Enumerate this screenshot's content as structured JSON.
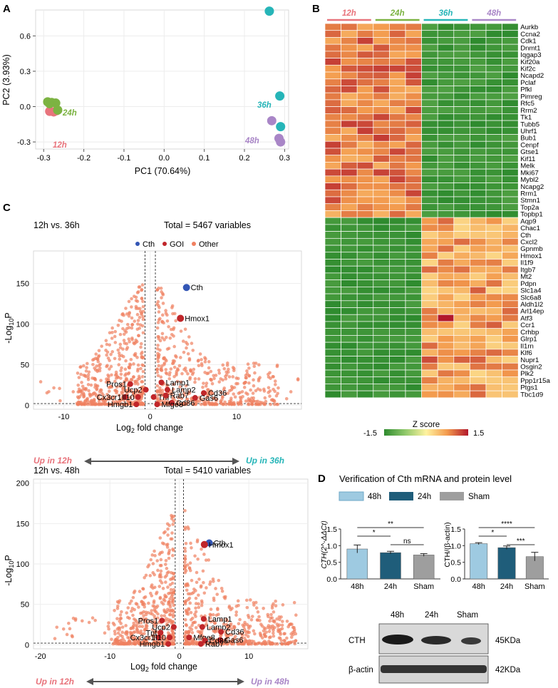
{
  "colors": {
    "t12": "#e8747c",
    "t24": "#7cb342",
    "t36": "#26b5b8",
    "t48": "#a986c7",
    "hm_low": "#2e8b2e",
    "hm_mid": "#fff3a0",
    "hm_high": "#b2182b",
    "volcano_other": "#f08060",
    "volcano_goi": "#c0262a",
    "volcano_cth": "#3356b5",
    "bar48": "#9ecae1",
    "bar24": "#1f5d7a",
    "barSham": "#9e9e9e"
  },
  "panelA": {
    "label": "A",
    "chart_data": {
      "type": "scatter",
      "title": "",
      "xlabel": "PC1 (70.64%)",
      "ylabel": "PC2 (3.93%)",
      "xlim": [
        -0.32,
        0.31
      ],
      "ylim": [
        -0.36,
        0.82
      ],
      "xticks": [
        -0.3,
        -0.2,
        -0.1,
        0.0,
        0.1,
        0.2,
        0.3
      ],
      "yticks": [
        -0.3,
        0.0,
        0.3,
        0.6
      ],
      "groups": [
        {
          "name": "12h",
          "points": [
            [
              -0.285,
              -0.04
            ],
            [
              -0.275,
              -0.045
            ],
            [
              -0.268,
              -0.035
            ]
          ]
        },
        {
          "name": "24h",
          "points": [
            [
              -0.29,
              0.04
            ],
            [
              -0.28,
              0.035
            ],
            [
              -0.27,
              0.03
            ],
            [
              -0.285,
              0.025
            ],
            [
              -0.265,
              -0.03
            ]
          ]
        },
        {
          "name": "36h",
          "points": [
            [
              0.262,
              0.81
            ],
            [
              0.288,
              0.09
            ],
            [
              0.29,
              -0.17
            ]
          ]
        },
        {
          "name": "48h",
          "points": [
            [
              0.268,
              -0.12
            ],
            [
              0.286,
              -0.27
            ],
            [
              0.29,
              -0.3
            ]
          ]
        }
      ]
    }
  },
  "panelB": {
    "label": "B",
    "groups": [
      "12h",
      "24h",
      "36h",
      "48h"
    ],
    "genes": [
      "Aurkb",
      "Ccna2",
      "Cdk1",
      "Dnmt1",
      "Iqgap3",
      "Kif20a",
      "Kif2c",
      "Ncapd2",
      "Pclaf",
      "Pfkl",
      "Pimreg",
      "Rfc5",
      "Rrm2",
      "Tk1",
      "Tubb5",
      "Uhrf1",
      "Bub1",
      "Cenpf",
      "Gtse1",
      "Kif11",
      "Melk",
      "Mki67",
      "Mybl2",
      "Ncapg2",
      "Rrm1",
      "Stmn1",
      "Top2a",
      "Topbp1",
      "Aqp9",
      "Chac1",
      "Cth",
      "Cxcl2",
      "Gpnmb",
      "Hmox1",
      "Il1f9",
      "Itgb7",
      "Mt2",
      "Pdpn",
      "Slc1a4",
      "Slc6a8",
      "Aldh1l2",
      "Arl14ep",
      "Atf3",
      "Ccr1",
      "Crhbp",
      "Glrp1",
      "Il1rn",
      "Klf6",
      "Nupr1",
      "Osgin2",
      "Plk2",
      "Ppp1r15a",
      "Ptgs1",
      "Tbc1d9"
    ],
    "colorbar_title": "Z score",
    "colorbar_min": "-1.5",
    "colorbar_max": "1.5",
    "chart_data": {
      "type": "heatmap",
      "columns_per_group": 3,
      "zlim": [
        -1.5,
        1.5
      ]
    }
  },
  "panelC": {
    "label": "C",
    "legend": [
      "Cth",
      "GOI",
      "Other"
    ],
    "top": {
      "title": "12h vs. 36h",
      "total": "Total = 5467 variables",
      "xlabel": "Log",
      "xlabel_sub": "2",
      "xlabel_rest": " fold change",
      "ylabel": "-Log",
      "ylabel_sub": "10",
      "ylabel_rest": "P",
      "up_left": "Up in 12h",
      "up_right": "Up in 36h",
      "chart_data": {
        "type": "scatter",
        "xlim": [
          -13.5,
          17.5
        ],
        "ylim": [
          -5,
          190
        ],
        "xticks": [
          -10,
          0,
          10
        ],
        "yticks": [
          0,
          50,
          100,
          150
        ],
        "labels": [
          {
            "name": "Cth",
            "x": 4.2,
            "y": 145,
            "kind": "cth"
          },
          {
            "name": "Hmox1",
            "x": 3.5,
            "y": 107,
            "kind": "goi"
          },
          {
            "name": "Pros1",
            "x": -2.3,
            "y": 26,
            "kind": "goi"
          },
          {
            "name": "Lamp1",
            "x": 1.3,
            "y": 28,
            "kind": "goi"
          },
          {
            "name": "Ucp2",
            "x": -0.5,
            "y": 19,
            "kind": "goi"
          },
          {
            "name": "Lamp2",
            "x": 2.0,
            "y": 19,
            "kind": "goi"
          },
          {
            "name": "Cx3cr1",
            "x": -2.9,
            "y": 10,
            "kind": "goi"
          },
          {
            "name": "Il10",
            "x": -1.4,
            "y": 10,
            "kind": "goi"
          },
          {
            "name": "Tnf",
            "x": 0.4,
            "y": 10,
            "kind": "goi"
          },
          {
            "name": "Cd36",
            "x": 6.2,
            "y": 15,
            "kind": "goi"
          },
          {
            "name": "Gas6",
            "x": 5.2,
            "y": 9,
            "kind": "goi"
          },
          {
            "name": "Rab7",
            "x": 1.8,
            "y": 12,
            "kind": "goi"
          },
          {
            "name": "Cd86",
            "x": 2.5,
            "y": 3,
            "kind": "goi"
          },
          {
            "name": "Hmgb1",
            "x": -1.6,
            "y": 1,
            "kind": "goi"
          },
          {
            "name": "Mfge8",
            "x": 0.8,
            "y": 1,
            "kind": "goi"
          }
        ]
      }
    },
    "bottom": {
      "title": "12h vs. 48h",
      "total": "Total = 5410 variables",
      "xlabel": "Log",
      "xlabel_sub": "2",
      "xlabel_rest": " fold change",
      "ylabel": "-Log",
      "ylabel_sub": "10",
      "ylabel_rest": "P",
      "up_left": "Up in 12h",
      "up_right": "Up in 48h",
      "chart_data": {
        "type": "scatter",
        "xlim": [
          -21,
          18.5
        ],
        "ylim": [
          -5,
          205
        ],
        "xticks": [
          -20,
          -10,
          0,
          10
        ],
        "yticks": [
          0,
          50,
          100,
          150,
          200
        ],
        "labels": [
          {
            "name": "Cth",
            "x": 4.3,
            "y": 126,
            "kind": "cth"
          },
          {
            "name": "Hmox1",
            "x": 3.6,
            "y": 124,
            "kind": "goi"
          },
          {
            "name": "Pros1",
            "x": -2.5,
            "y": 30,
            "kind": "goi"
          },
          {
            "name": "Lamp1",
            "x": 3.5,
            "y": 32,
            "kind": "goi"
          },
          {
            "name": "Ucp2",
            "x": -0.8,
            "y": 22,
            "kind": "goi"
          },
          {
            "name": "Lamp2",
            "x": 3.3,
            "y": 22,
            "kind": "goi"
          },
          {
            "name": "Tnf",
            "x": -2.7,
            "y": 15,
            "kind": "goi"
          },
          {
            "name": "Cx3cr1",
            "x": -3.0,
            "y": 9,
            "kind": "goi"
          },
          {
            "name": "Il10",
            "x": -1.4,
            "y": 9,
            "kind": "goi"
          },
          {
            "name": "Mfge8",
            "x": 1.4,
            "y": 9,
            "kind": "goi"
          },
          {
            "name": "Cd36",
            "x": 6.0,
            "y": 16,
            "kind": "goi"
          },
          {
            "name": "Gas6",
            "x": 5.9,
            "y": 6,
            "kind": "goi"
          },
          {
            "name": "Cd86",
            "x": 3.7,
            "y": 5,
            "kind": "goi"
          },
          {
            "name": "Hmgb1",
            "x": -1.6,
            "y": 1,
            "kind": "goi"
          },
          {
            "name": "Rab7",
            "x": 3.1,
            "y": 1,
            "kind": "goi"
          }
        ]
      }
    }
  },
  "panelD": {
    "label": "D",
    "title": "Verification of Cth mRNA and protein level",
    "legend": [
      "48h",
      "24h",
      "Sham"
    ],
    "mrna": {
      "ylabel": "CTH(2^-ΔΔCt)",
      "chart_data": {
        "type": "bar",
        "categories": [
          "48h",
          "24h",
          "Sham"
        ],
        "values": [
          0.9,
          0.79,
          0.72
        ],
        "errors": [
          0.12,
          0.04,
          0.04
        ],
        "ylim": [
          0,
          1.5
        ],
        "yticks": [
          "0.0",
          "0.5",
          "1.0",
          "1.5"
        ],
        "sig": [
          {
            "a": 0,
            "b": 2,
            "label": "**"
          },
          {
            "a": 0,
            "b": 1,
            "label": "*"
          },
          {
            "a": 1,
            "b": 2,
            "label": "ns"
          }
        ]
      }
    },
    "protein": {
      "ylabel": "CTH/(β-actin)",
      "chart_data": {
        "type": "bar",
        "categories": [
          "48h",
          "24h",
          "Sham"
        ],
        "values": [
          1.06,
          0.94,
          0.67
        ],
        "errors": [
          0.03,
          0.05,
          0.13
        ],
        "ylim": [
          0,
          1.5
        ],
        "yticks": [
          "0.0",
          "0.5",
          "1.0",
          "1.5"
        ],
        "sig": [
          {
            "a": 0,
            "b": 2,
            "label": "****"
          },
          {
            "a": 0,
            "b": 1,
            "label": "*"
          },
          {
            "a": 1,
            "b": 2,
            "label": "***"
          }
        ]
      }
    },
    "blot": {
      "lanes": [
        "48h",
        "24h",
        "Sham"
      ],
      "rows": [
        {
          "name": "CTH",
          "size": "45KDa"
        },
        {
          "name": "β-actin",
          "size": "42KDa"
        }
      ]
    }
  }
}
